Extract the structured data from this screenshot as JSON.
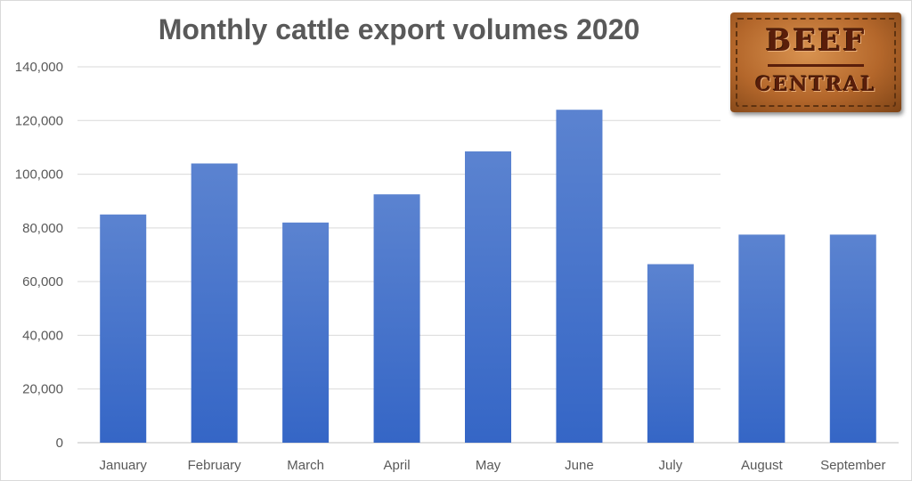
{
  "chart_data": {
    "type": "bar",
    "title": "Monthly cattle export volumes 2020",
    "xlabel": "",
    "ylabel": "",
    "categories": [
      "January",
      "February",
      "March",
      "April",
      "May",
      "June",
      "July",
      "August",
      "September"
    ],
    "values": [
      85000,
      104000,
      82000,
      92500,
      108500,
      124000,
      66500,
      77500,
      77500
    ],
    "ylim": [
      0,
      140000
    ],
    "yticks": [
      "0",
      "20,000",
      "40,000",
      "60,000",
      "80,000",
      "100,000",
      "120,000",
      "140,000"
    ],
    "grid": true,
    "legend": "none",
    "bar_color": "#4472c4"
  },
  "logo": {
    "line1": "BEEF",
    "line2": "CENTRAL"
  }
}
